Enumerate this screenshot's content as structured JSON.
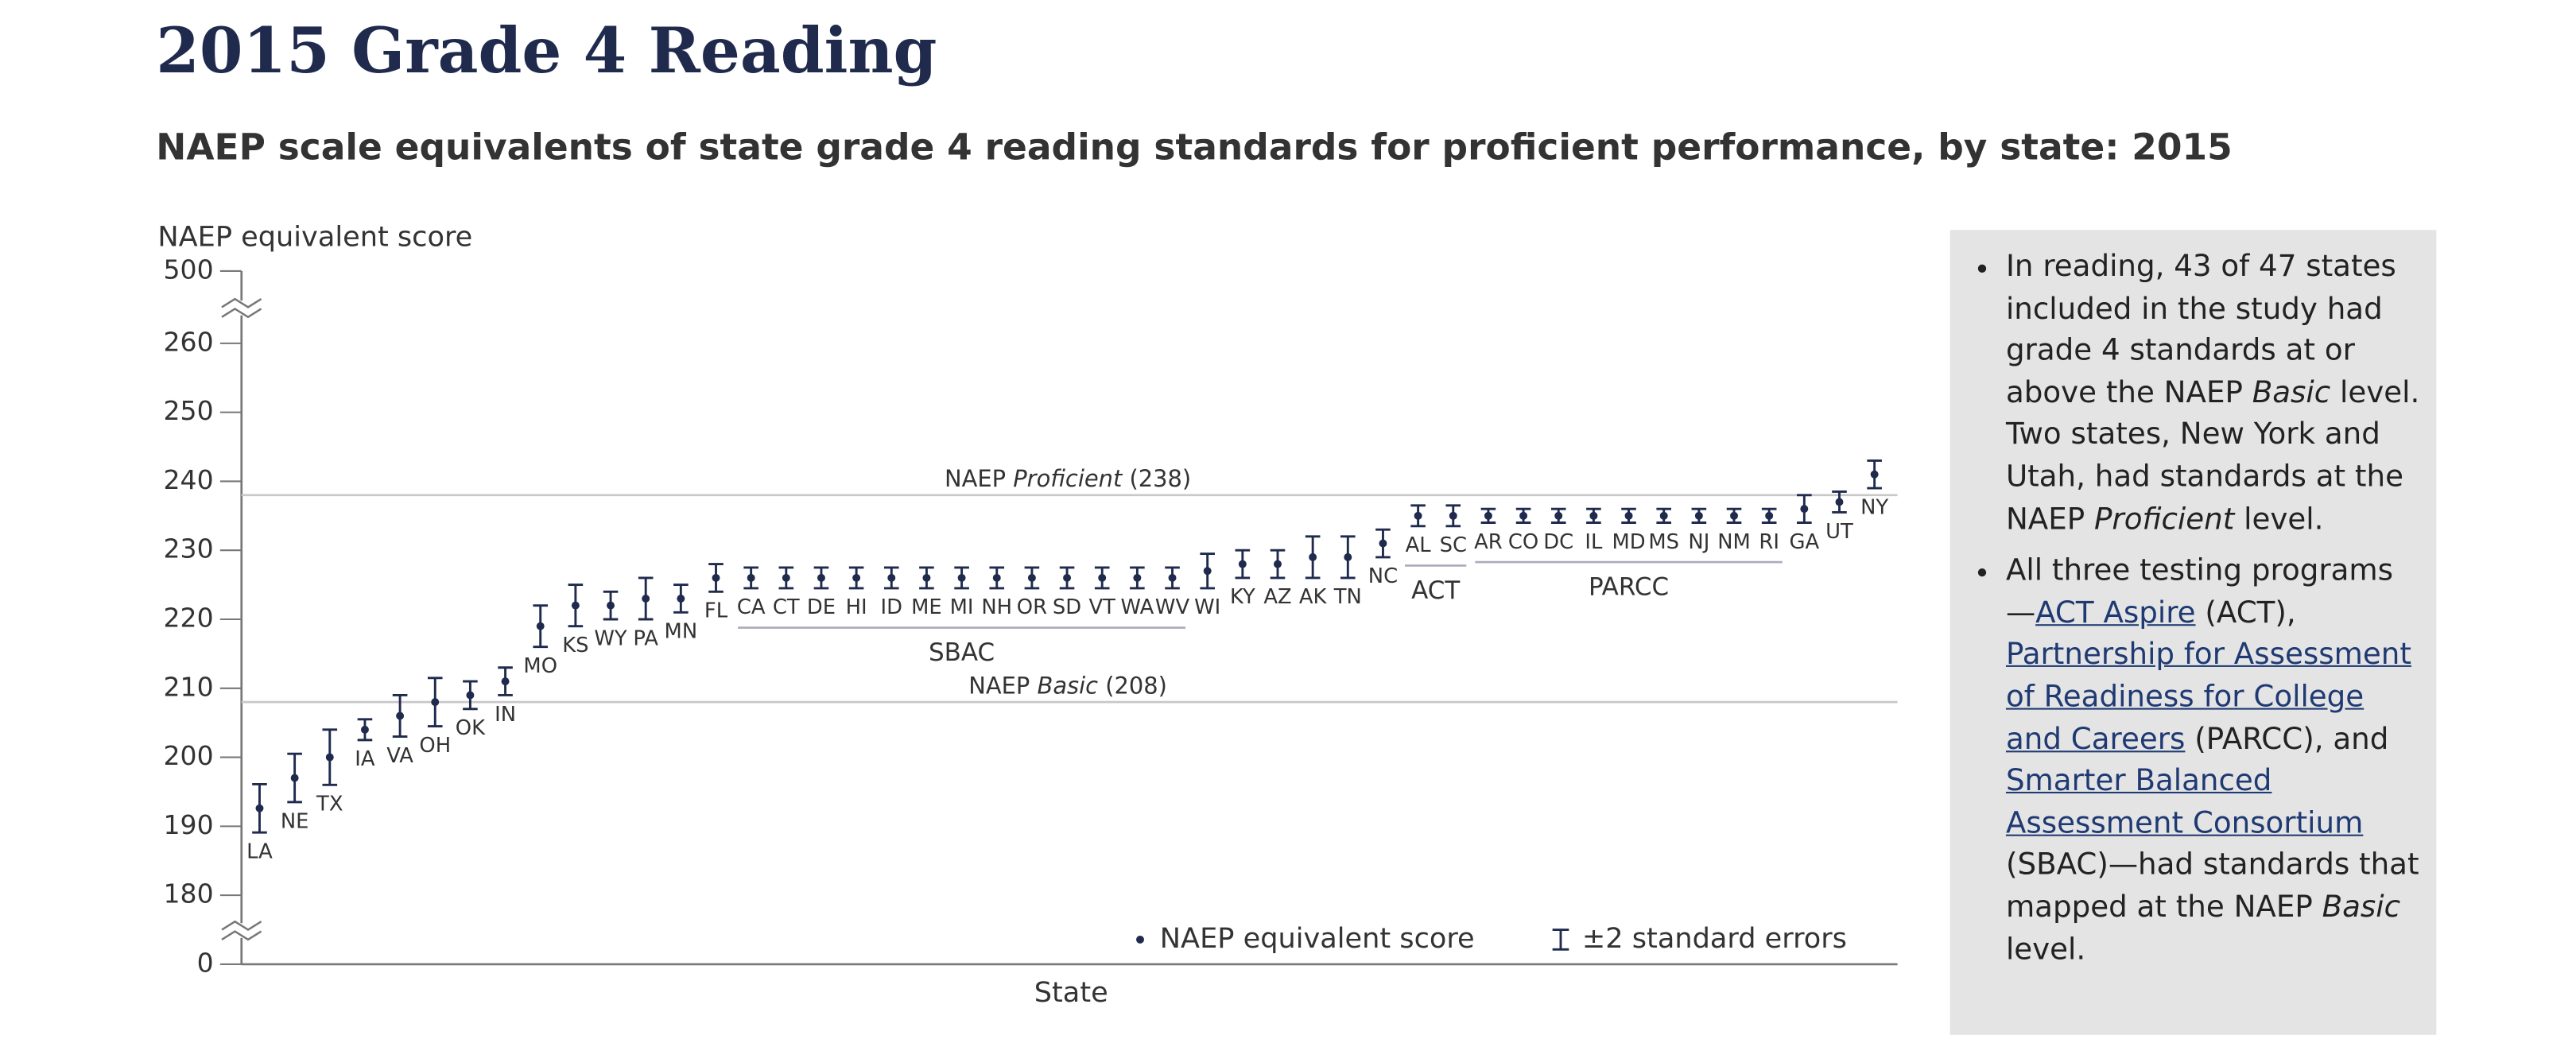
{
  "chart_data": {
    "type": "errorbar",
    "title": "2015 Grade 4 Reading",
    "subtitle": "NAEP scale equivalents of state grade 4 reading standards for proficient performance, by state: 2015",
    "y_label": "NAEP equivalent score",
    "x_label": "State",
    "categories": [
      "LA",
      "NE",
      "TX",
      "IA",
      "VA",
      "OH",
      "OK",
      "IN",
      "MO",
      "KS",
      "WY",
      "PA",
      "MN",
      "FL",
      "CA",
      "CT",
      "DE",
      "HI",
      "ID",
      "ME",
      "MI",
      "NH",
      "OR",
      "SD",
      "VT",
      "WA",
      "WV",
      "WI",
      "KY",
      "AZ",
      "AK",
      "TN",
      "NC",
      "AL",
      "SC",
      "AR",
      "CO",
      "DC",
      "IL",
      "MD",
      "MS",
      "NJ",
      "NM",
      "RI",
      "GA",
      "UT",
      "NY"
    ],
    "groups": [
      null,
      null,
      null,
      null,
      null,
      null,
      null,
      null,
      null,
      null,
      null,
      null,
      null,
      null,
      "SBAC",
      "SBAC",
      "SBAC",
      "SBAC",
      "SBAC",
      "SBAC",
      "SBAC",
      "SBAC",
      "SBAC",
      "SBAC",
      "SBAC",
      "SBAC",
      "SBAC",
      null,
      null,
      null,
      null,
      null,
      null,
      "ACT",
      "ACT",
      "PARCC",
      "PARCC",
      "PARCC",
      "PARCC",
      "PARCC",
      "PARCC",
      "PARCC",
      "PARCC",
      "PARCC",
      null,
      null,
      null
    ],
    "values": [
      192.6,
      197,
      200,
      204,
      206,
      208,
      209,
      211,
      219,
      222,
      222,
      223,
      223,
      226,
      226,
      226,
      226,
      226,
      226,
      226,
      226,
      226,
      226,
      226,
      226,
      226,
      226,
      227,
      228,
      228,
      229,
      229,
      231,
      235,
      235,
      235,
      235,
      235,
      235,
      235,
      235,
      235,
      235,
      235,
      236,
      237,
      241
    ],
    "errors": [
      3.5,
      3.5,
      4,
      1.5,
      3,
      3.5,
      2,
      2,
      3,
      3,
      2,
      3,
      2,
      2,
      1.5,
      1.5,
      1.5,
      1.5,
      1.5,
      1.5,
      1.5,
      1.5,
      1.5,
      1.5,
      1.5,
      1.5,
      1.5,
      2.5,
      2,
      2,
      3,
      3,
      2,
      1.5,
      1.5,
      1,
      1,
      1,
      1,
      1,
      1,
      1,
      1,
      1,
      2,
      1.5,
      2
    ],
    "color": "#1f2a4d",
    "ylim": [
      170,
      270
    ],
    "axis_break": true,
    "yticks": [
      0,
      180,
      190,
      200,
      210,
      220,
      230,
      240,
      250,
      260,
      500
    ],
    "reference_lines": [
      {
        "value": 238,
        "label": [
          "NAEP ",
          "Proficient",
          " (238)"
        ]
      },
      {
        "value": 208,
        "label": [
          "NAEP ",
          "Basic",
          " (208)"
        ]
      }
    ],
    "legend": [
      "NAEP equivalent score",
      "±2 standard errors"
    ]
  },
  "sidebar": {
    "bullets": [
      [
        {
          "text": "In reading, 43 of 47 states included in the study had grade 4 standards at or above the NAEP "
        },
        {
          "text": "Basic",
          "style": "italic"
        },
        {
          "text": " level. Two states, New York and Utah, had standards at the NAEP "
        },
        {
          "text": "Proficient",
          "style": "italic"
        },
        {
          "text": " level."
        }
      ],
      [
        {
          "text": "All three testing programs—"
        },
        {
          "text": "ACT Aspire",
          "style": "link"
        },
        {
          "text": " (ACT), "
        },
        {
          "text": "Partnership for Assessment of Readiness for College and Careers",
          "style": "link"
        },
        {
          "text": " (PARCC), and "
        },
        {
          "text": "Smarter Balanced Assessment Consortium",
          "style": "link"
        },
        {
          "text": " (SBAC)—had standards that mapped at the NAEP "
        },
        {
          "text": "Basic",
          "style": "italic"
        },
        {
          "text": " level."
        }
      ]
    ]
  }
}
